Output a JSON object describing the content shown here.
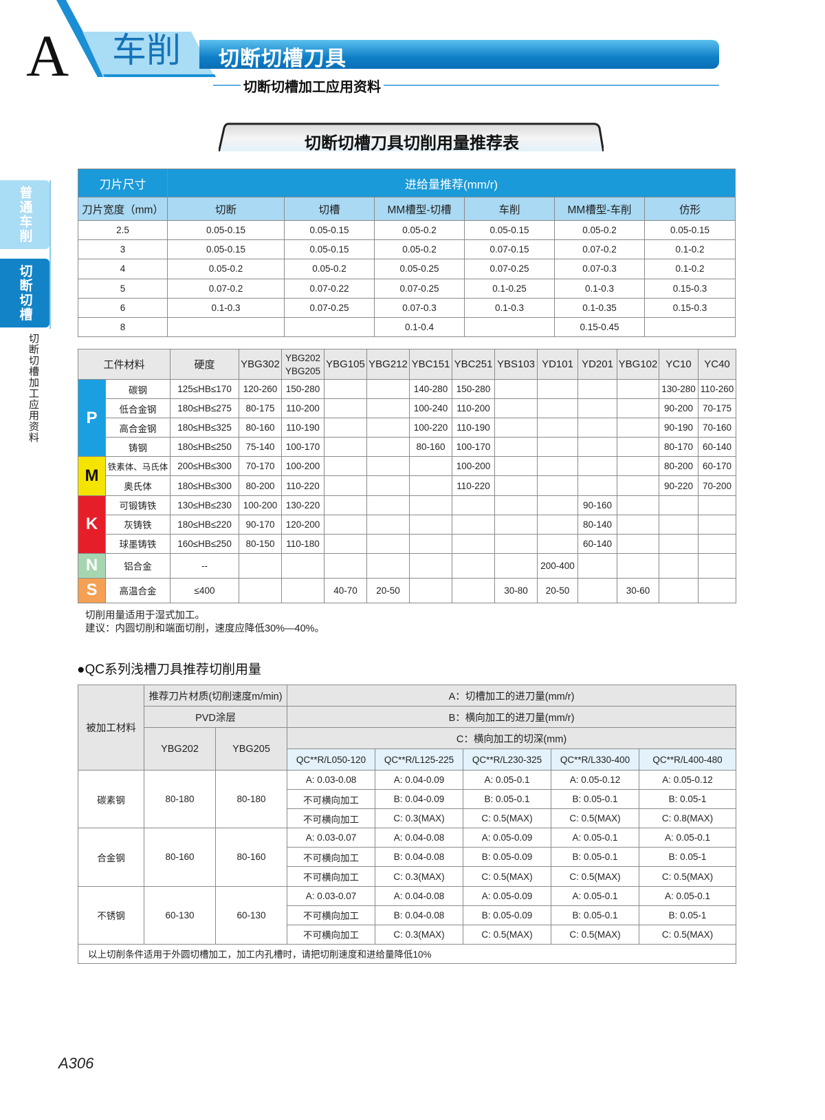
{
  "header": {
    "section_letter": "A",
    "chapter": "车削",
    "title": "切断切槽刀具",
    "subtitle": "切断切槽加工应用资料",
    "banner": "切断切槽刀具切削用量推荐表"
  },
  "side_tabs": [
    {
      "label": "普通车削"
    },
    {
      "label": "切断切槽"
    }
  ],
  "side_vertical": "切断切槽加工应用资料",
  "colors": {
    "primary": "#1a9ad8",
    "light": "#a9d9f3",
    "P": "#1aa0e0",
    "M": "#f5e400",
    "K": "#e61e2a",
    "N": "#a6d6b0",
    "S": "#f5a055"
  },
  "feed_table": {
    "header_size": "刀片尺寸",
    "header_feed": "进给量推荐(mm/r)",
    "columns": [
      "刀片宽度（mm）",
      "切断",
      "切槽",
      "MM槽型-切槽",
      "车削",
      "MM槽型-车削",
      "仿形"
    ],
    "rows": [
      [
        "2.5",
        "0.05-0.15",
        "0.05-0.15",
        "0.05-0.2",
        "0.05-0.15",
        "0.05-0.2",
        "0.05-0.15"
      ],
      [
        "3",
        "0.05-0.15",
        "0.05-0.15",
        "0.05-0.2",
        "0.07-0.15",
        "0.07-0.2",
        "0.1-0.2"
      ],
      [
        "4",
        "0.05-0.2",
        "0.05-0.2",
        "0.05-0.25",
        "0.07-0.25",
        "0.07-0.3",
        "0.1-0.2"
      ],
      [
        "5",
        "0.07-0.2",
        "0.07-0.22",
        "0.07-0.25",
        "0.1-0.25",
        "0.1-0.3",
        "0.15-0.3"
      ],
      [
        "6",
        "0.1-0.3",
        "0.07-0.25",
        "0.07-0.3",
        "0.1-0.3",
        "0.1-0.35",
        "0.15-0.3"
      ],
      [
        "8",
        "",
        "",
        "0.1-0.4",
        "",
        "0.15-0.45",
        ""
      ]
    ]
  },
  "speed_table": {
    "columns": [
      "工件材料",
      "硬度",
      "YBG302",
      "YBG202\nYBG205",
      "YBG105",
      "YBG212",
      "YBC151",
      "YBC251",
      "YBS103",
      "YD101",
      "YD201",
      "YBG102",
      "YC10",
      "YC40"
    ],
    "groups": [
      {
        "letter": "P",
        "rows": [
          {
            "material": "碳钢",
            "hardness": "125≤HB≤170",
            "values": [
              "120-260",
              "150-280",
              "",
              "",
              "140-280",
              "150-280",
              "",
              "",
              "",
              "",
              "130-280",
              "110-260"
            ]
          },
          {
            "material": "低合金钢",
            "hardness": "180≤HB≤275",
            "values": [
              "80-175",
              "110-200",
              "",
              "",
              "100-240",
              "110-200",
              "",
              "",
              "",
              "",
              "90-200",
              "70-175"
            ]
          },
          {
            "material": "高合金钢",
            "hardness": "180≤HB≤325",
            "values": [
              "80-160",
              "110-190",
              "",
              "",
              "100-220",
              "110-190",
              "",
              "",
              "",
              "",
              "90-190",
              "70-160"
            ]
          },
          {
            "material": "铸钢",
            "hardness": "180≤HB≤250",
            "values": [
              "75-140",
              "100-170",
              "",
              "",
              "80-160",
              "100-170",
              "",
              "",
              "",
              "",
              "80-170",
              "60-140"
            ]
          }
        ]
      },
      {
        "letter": "M",
        "rows": [
          {
            "material": "铁素体、马氏体",
            "hardness": "200≤HB≤300",
            "values": [
              "70-170",
              "100-200",
              "",
              "",
              "",
              "100-200",
              "",
              "",
              "",
              "",
              "80-200",
              "60-170"
            ]
          },
          {
            "material": "奥氏体",
            "hardness": "180≤HB≤300",
            "values": [
              "80-200",
              "110-220",
              "",
              "",
              "",
              "110-220",
              "",
              "",
              "",
              "",
              "90-220",
              "70-200"
            ]
          }
        ]
      },
      {
        "letter": "K",
        "rows": [
          {
            "material": "可锻铸铁",
            "hardness": "130≤HB≤230",
            "values": [
              "100-200",
              "130-220",
              "",
              "",
              "",
              "",
              "",
              "",
              "90-160",
              "",
              "",
              ""
            ]
          },
          {
            "material": "灰铸铁",
            "hardness": "180≤HB≤220",
            "values": [
              "90-170",
              "120-200",
              "",
              "",
              "",
              "",
              "",
              "",
              "80-140",
              "",
              "",
              ""
            ]
          },
          {
            "material": "球墨铸铁",
            "hardness": "160≤HB≤250",
            "values": [
              "80-150",
              "110-180",
              "",
              "",
              "",
              "",
              "",
              "",
              "60-140",
              "",
              "",
              ""
            ]
          }
        ]
      },
      {
        "letter": "N",
        "rows": [
          {
            "material": "铝合金",
            "hardness": "--",
            "values": [
              "",
              "",
              "",
              "",
              "",
              "",
              "",
              "200-400",
              "",
              "",
              "",
              ""
            ]
          }
        ]
      },
      {
        "letter": "S",
        "rows": [
          {
            "material": "高温合金",
            "hardness": "≤400",
            "values": [
              "",
              "",
              "40-70",
              "20-50",
              "",
              "",
              "30-80",
              "20-50",
              "",
              "30-60",
              "",
              ""
            ]
          }
        ]
      }
    ]
  },
  "notes": [
    "切削用量适用于湿式加工。",
    "建议：内圆切削和端面切削，速度应降低30%—40%。"
  ],
  "qc": {
    "heading": "●QC系列浅槽刀具推荐切削用量",
    "h_material": "被加工材料",
    "h_grade": "推荐刀片材质(切削速度m/min)",
    "h_pvd": "PVD涂层",
    "grades": [
      "YBG202",
      "YBG205"
    ],
    "h_a": "A：切槽加工的进刀量(mm/r)",
    "h_b": "B：横向加工的进刀量(mm/r)",
    "h_c": "C：横向加工的切深(mm)",
    "models": [
      "QC**R/L050-120",
      "QC**R/L125-225",
      "QC**R/L230-325",
      "QC**R/L330-400",
      "QC**R/L400-480"
    ],
    "groups": [
      {
        "material": "碳素钢",
        "ybg202": "80-180",
        "ybg205": "80-180",
        "rows": [
          [
            "A: 0.03-0.08",
            "A: 0.04-0.09",
            "A: 0.05-0.1",
            "A: 0.05-0.12",
            "A: 0.05-0.12"
          ],
          [
            "不可横向加工",
            "B: 0.04-0.09",
            "B: 0.05-0.1",
            "B: 0.05-0.1",
            "B: 0.05-1"
          ],
          [
            "不可横向加工",
            "C: 0.3(MAX)",
            "C: 0.5(MAX)",
            "C: 0.5(MAX)",
            "C: 0.8(MAX)"
          ]
        ]
      },
      {
        "material": "合金钢",
        "ybg202": "80-160",
        "ybg205": "80-160",
        "rows": [
          [
            "A: 0.03-0.07",
            "A: 0.04-0.08",
            "A: 0.05-0.09",
            "A: 0.05-0.1",
            "A: 0.05-0.1"
          ],
          [
            "不可横向加工",
            "B: 0.04-0.08",
            "B: 0.05-0.09",
            "B: 0.05-0.1",
            "B: 0.05-1"
          ],
          [
            "不可横向加工",
            "C: 0.3(MAX)",
            "C: 0.5(MAX)",
            "C: 0.5(MAX)",
            "C: 0.5(MAX)"
          ]
        ]
      },
      {
        "material": "不锈钢",
        "ybg202": "60-130",
        "ybg205": "60-130",
        "rows": [
          [
            "A: 0.03-0.07",
            "A: 0.04-0.08",
            "A: 0.05-0.09",
            "A: 0.05-0.1",
            "A: 0.05-0.1"
          ],
          [
            "不可横向加工",
            "B: 0.04-0.08",
            "B: 0.05-0.09",
            "B: 0.05-0.1",
            "B: 0.05-1"
          ],
          [
            "不可横向加工",
            "C: 0.3(MAX)",
            "C: 0.5(MAX)",
            "C: 0.5(MAX)",
            "C: 0.5(MAX)"
          ]
        ]
      }
    ],
    "footer": "以上切削条件适用于外圆切槽加工，加工内孔槽时，请把切削速度和进给量降低10%"
  },
  "page_number": "A306"
}
